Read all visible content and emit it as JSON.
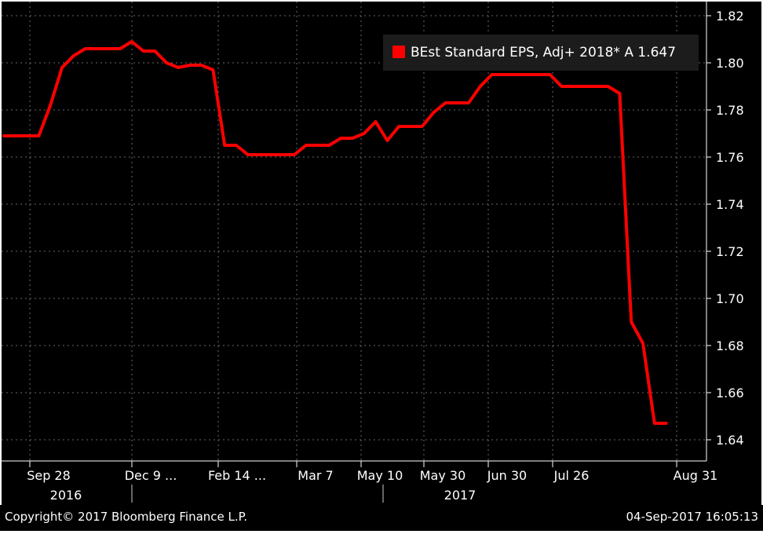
{
  "chart_data": {
    "type": "line",
    "title": "",
    "xlabel": "",
    "ylabel": "",
    "ylim": [
      1.63,
      1.825
    ],
    "grid": true,
    "legend_position": "top-right",
    "y_ticks": [
      "1.82",
      "1.80",
      "1.78",
      "1.76",
      "1.74",
      "1.72",
      "1.70",
      "1.68",
      "1.66",
      "1.64"
    ],
    "x_ticks": [
      {
        "label": "Sep 28",
        "year": "2016"
      },
      {
        "label": "Dec 9 ...",
        "year": ""
      },
      {
        "label": "Feb 14 ...",
        "year": ""
      },
      {
        "label": "Mar 7",
        "year": ""
      },
      {
        "label": "May 10",
        "year": ""
      },
      {
        "label": "May 30",
        "year": "2017"
      },
      {
        "label": "Jun 30",
        "year": ""
      },
      {
        "label": "Jul 26",
        "year": ""
      },
      {
        "label": "Aug 31",
        "year": ""
      }
    ],
    "series": [
      {
        "name": "BEst Standard EPS, Adj+ 2018* A 1.647",
        "color": "#ff0000",
        "values": [
          1.769,
          1.769,
          1.769,
          1.769,
          1.782,
          1.798,
          1.803,
          1.806,
          1.806,
          1.806,
          1.806,
          1.809,
          1.805,
          1.805,
          1.8,
          1.798,
          1.799,
          1.799,
          1.797,
          1.765,
          1.765,
          1.761,
          1.761,
          1.761,
          1.761,
          1.761,
          1.765,
          1.765,
          1.765,
          1.768,
          1.768,
          1.77,
          1.775,
          1.767,
          1.773,
          1.773,
          1.773,
          1.779,
          1.783,
          1.783,
          1.783,
          1.79,
          1.795,
          1.795,
          1.795,
          1.795,
          1.795,
          1.795,
          1.79,
          1.79,
          1.79,
          1.79,
          1.79,
          1.787,
          1.69,
          1.681,
          1.647,
          1.647
        ]
      }
    ]
  },
  "footer": {
    "copyright": "Copyright© 2017 Bloomberg Finance L.P.",
    "timestamp": "04-Sep-2017 16:05:13"
  }
}
